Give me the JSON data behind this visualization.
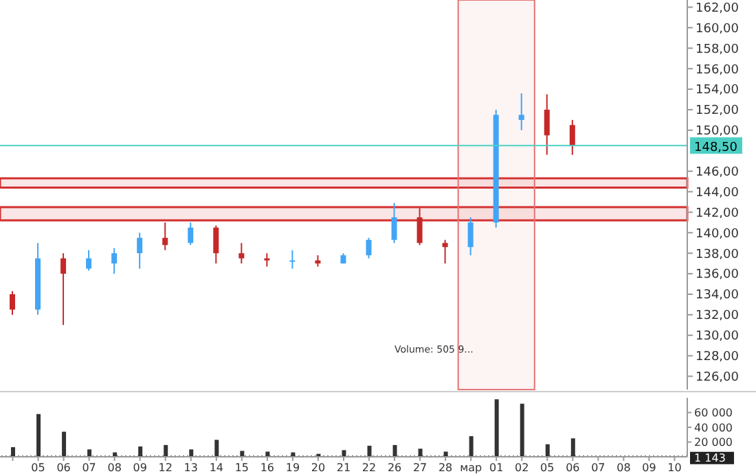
{
  "chart_data": [
    {
      "type": "candlestick",
      "categories": [
        null,
        "05",
        "06",
        "07",
        "08",
        "09",
        "12",
        "13",
        "14",
        "15",
        "16",
        "19",
        "20",
        "21",
        "22",
        "26",
        "27",
        "28",
        "мар",
        "01",
        "02",
        "05",
        "06",
        "07",
        "08",
        "09",
        "10"
      ],
      "ohlc": [
        [
          134,
          134.3,
          132,
          132.5
        ],
        [
          132.5,
          139,
          132,
          137.5
        ],
        [
          137.5,
          138,
          131,
          136
        ],
        [
          136.5,
          138.3,
          136.3,
          137.5
        ],
        [
          137,
          138.5,
          136,
          138
        ],
        [
          138,
          140,
          136.5,
          139.5
        ],
        [
          139.5,
          141,
          138.3,
          138.8
        ],
        [
          139,
          141,
          138.8,
          140.5
        ],
        [
          140.5,
          140.7,
          137,
          138
        ],
        [
          138,
          139,
          137,
          137.5
        ],
        [
          137.5,
          138,
          136.7,
          137.3
        ],
        [
          137.3,
          138.3,
          136.5,
          137.3
        ],
        [
          137.3,
          137.8,
          136.7,
          137
        ],
        [
          137,
          138,
          137,
          137.8
        ],
        [
          137.8,
          139.5,
          137.5,
          139.3
        ],
        [
          139.3,
          142.9,
          139,
          141.5
        ],
        [
          141.5,
          142.4,
          138.8,
          139
        ],
        [
          139,
          139.3,
          137,
          138.6
        ],
        [
          138.6,
          141.5,
          137.8,
          141
        ],
        [
          141,
          152,
          140.5,
          151.5
        ],
        [
          151,
          153.6,
          150,
          151.5
        ],
        [
          152,
          153.5,
          147.6,
          149.5
        ],
        [
          150.5,
          151,
          147.6,
          148.5
        ],
        null,
        null,
        null,
        null
      ],
      "ylim": [
        124.7,
        162.7
      ],
      "yticks": [
        {
          "value": 126,
          "label": "126,00"
        },
        {
          "value": 128,
          "label": "128,00"
        },
        {
          "value": 130,
          "label": "130,00"
        },
        {
          "value": 132,
          "label": "132,00"
        },
        {
          "value": 134,
          "label": "134,00"
        },
        {
          "value": 136,
          "label": "136,00"
        },
        {
          "value": 138,
          "label": "138,00"
        },
        {
          "value": 140,
          "label": "140,00"
        },
        {
          "value": 142,
          "label": "142,00"
        },
        {
          "value": 144,
          "label": "144,00"
        },
        {
          "value": 146,
          "label": "146,00"
        },
        {
          "value": 150,
          "label": "150,00"
        },
        {
          "value": 152,
          "label": "152,00"
        },
        {
          "value": 154,
          "label": "154,00"
        },
        {
          "value": 156,
          "label": "156,00"
        },
        {
          "value": 158,
          "label": "158,00"
        },
        {
          "value": 160,
          "label": "160,00"
        },
        {
          "value": 162,
          "label": "162,00"
        }
      ],
      "ref_lines": [
        {
          "axis": "y",
          "value": 148.5,
          "label": "148,50",
          "color": "#4dd0c4"
        }
      ],
      "bands": [
        {
          "axis": "y",
          "from": 141.2,
          "to": 142.5,
          "color": "#d32f2f"
        },
        {
          "axis": "y",
          "from": 144.4,
          "to": 145.3,
          "color": "#d32f2f"
        },
        {
          "axis": "x",
          "from": "мар",
          "to": "02",
          "color": "#e57373"
        }
      ],
      "annotations": [
        "Volume: 505 9..."
      ],
      "tick_labels": "y"
    },
    {
      "type": "bar",
      "categories": [
        null,
        "05",
        "06",
        "07",
        "08",
        "09",
        "12",
        "13",
        "14",
        "15",
        "16",
        "19",
        "20",
        "21",
        "22",
        "26",
        "27",
        "28",
        "мар",
        "01",
        "02",
        "05",
        "06",
        "07",
        "08",
        "09",
        "10"
      ],
      "values": [
        13000,
        58000,
        34000,
        10000,
        6000,
        14000,
        16000,
        10000,
        23000,
        8000,
        7000,
        6000,
        4000,
        9000,
        15000,
        16000,
        11000,
        7000,
        28000,
        78000,
        72000,
        17000,
        25000,
        null,
        null,
        null,
        null
      ],
      "color": "#333333",
      "ylim": [
        0,
        80000
      ],
      "yticks": [
        {
          "value": 20000,
          "label": "20 000"
        },
        {
          "value": 40000,
          "label": "40 000"
        },
        {
          "value": 60000,
          "label": "60 000"
        }
      ],
      "ref_lines": [
        {
          "axis": "y",
          "value": 1143,
          "label": "1 143",
          "color": "#222222"
        }
      ]
    }
  ]
}
